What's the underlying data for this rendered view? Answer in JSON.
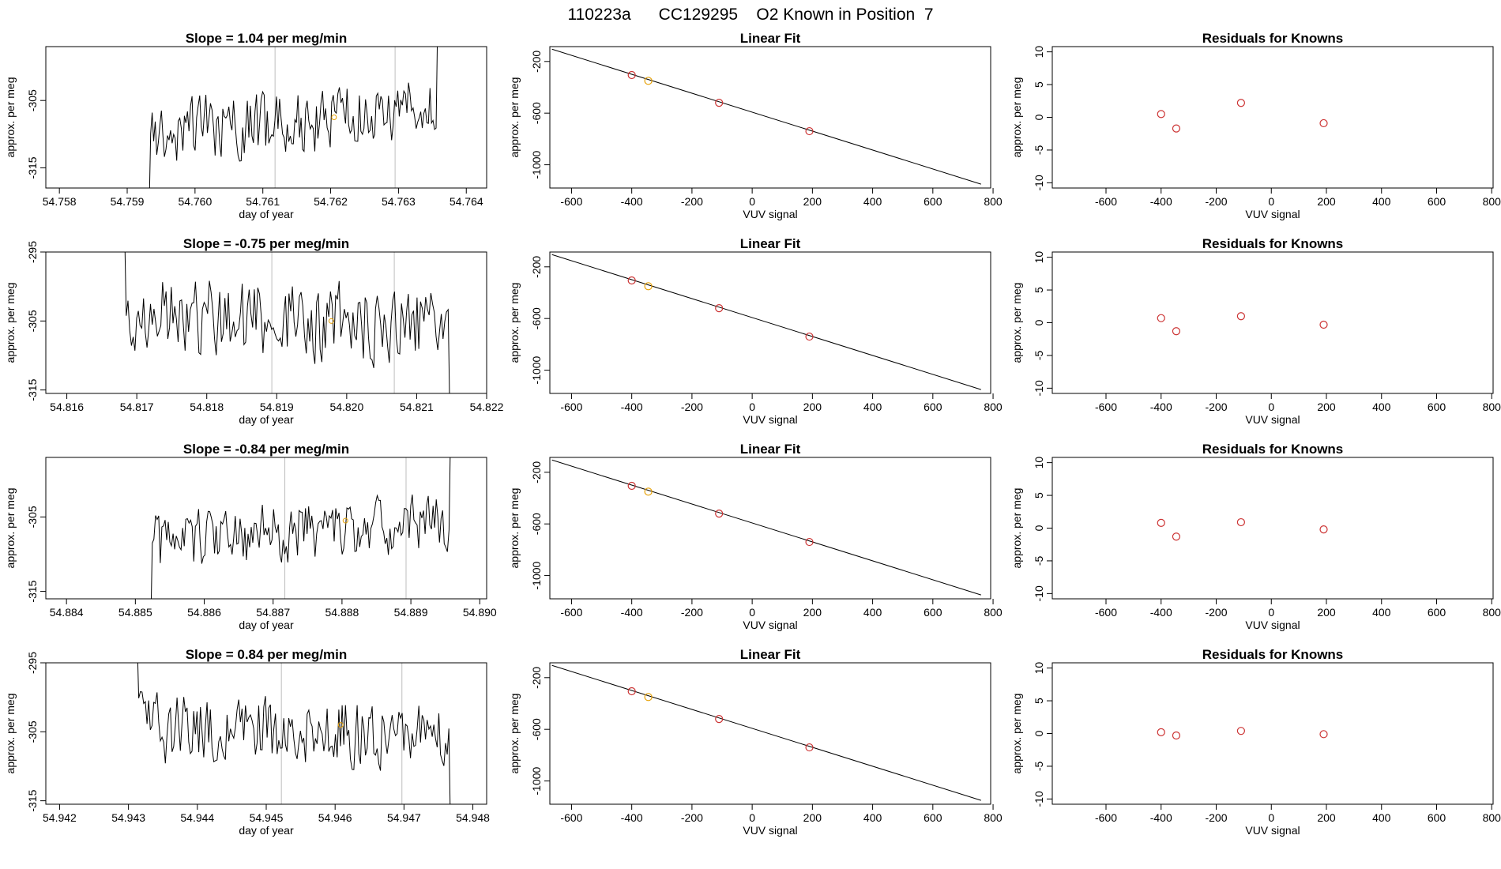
{
  "page": {
    "title": "110223a      CC129295    O2 Known in Position  7"
  },
  "colors": {
    "line": "#000000",
    "point": "#cc3333",
    "highlight": "#e69f00",
    "vline": "#bebebe",
    "axis": "#000000"
  },
  "chart_data": [
    {
      "type": "line",
      "row": 0,
      "col": 0,
      "title": "Slope =  1.04  per meg/min",
      "xlabel": "day of year",
      "ylabel": "approx. per meg",
      "xlim": [
        54.7578,
        54.7643
      ],
      "ylim": [
        -318,
        -297
      ],
      "xticks": [
        "54.758",
        "54.759",
        "54.760",
        "54.761",
        "54.762",
        "54.763",
        "54.764"
      ],
      "xtick_values": [
        54.758,
        54.759,
        54.76,
        54.761,
        54.762,
        54.763,
        54.764
      ],
      "yticks": [
        "-315",
        "-305"
      ],
      "ytick_values": [
        -315,
        -305
      ],
      "start": 54.7593,
      "end": 54.7636,
      "seed": 1,
      "base": -308,
      "trend": 3,
      "amp": 6,
      "vlines": [
        54.76118,
        54.76295
      ],
      "marker": [
        54.76205,
        -307.5
      ]
    },
    {
      "type": "scatter",
      "row": 0,
      "col": 1,
      "title": "Linear Fit",
      "xlabel": "VUV signal",
      "ylabel": "approx. per meg",
      "xlim": [
        -672,
        792
      ],
      "ylim": [
        -1180,
        -85
      ],
      "xticks": [
        "-600",
        "-400",
        "-200",
        "0",
        "200",
        "400",
        "600",
        "800"
      ],
      "xtick_values": [
        -600,
        -400,
        -200,
        0,
        200,
        400,
        600,
        800
      ],
      "yticks": [
        "-1000",
        "-600",
        "-200"
      ],
      "ytick_values": [
        -1000,
        -600,
        -200
      ],
      "line": {
        "x": [
          -665,
          760
        ],
        "y": [
          -105,
          -1150
        ]
      },
      "x": [
        -400,
        -345,
        -110,
        190
      ],
      "y": [
        -305,
        -350,
        -520,
        -740
      ],
      "highlight_index": 1
    },
    {
      "type": "scatter",
      "row": 0,
      "col": 2,
      "title": "Residuals for Knowns",
      "xlabel": "VUV signal",
      "ylabel": "approx. per meg",
      "xlim": [
        -795,
        805
      ],
      "ylim": [
        -10.8,
        10.8
      ],
      "xticks": [
        "-600",
        "-400",
        "-200",
        "0",
        "200",
        "400",
        "600",
        "800"
      ],
      "xtick_values": [
        -600,
        -400,
        -200,
        0,
        200,
        400,
        600,
        800
      ],
      "yticks": [
        "-10",
        "-5",
        "0",
        "5",
        "10"
      ],
      "ytick_values": [
        -10,
        -5,
        0,
        5,
        10
      ],
      "x": [
        -400,
        -345,
        -110,
        190
      ],
      "y": [
        0.5,
        -1.7,
        2.2,
        -0.9
      ]
    },
    {
      "type": "line",
      "row": 1,
      "col": 0,
      "title": "Slope =  -0.75  per meg/min",
      "xlabel": "day of year",
      "ylabel": "approx. per meg",
      "xlim": [
        54.8157,
        54.822
      ],
      "ylim": [
        -315.5,
        -295
      ],
      "xticks": [
        "54.816",
        "54.817",
        "54.818",
        "54.819",
        "54.820",
        "54.821",
        "54.822"
      ],
      "xtick_values": [
        54.816,
        54.817,
        54.818,
        54.819,
        54.82,
        54.821,
        54.822
      ],
      "yticks": [
        "-315",
        "-305",
        "-295"
      ],
      "ytick_values": [
        -315,
        -305,
        -295
      ],
      "start": 54.8168,
      "end": 54.8215,
      "seed": 2,
      "base": -305,
      "trend": -2,
      "amp": 7,
      "vlines": [
        54.81893,
        54.82068
      ],
      "marker": [
        54.81978,
        -305
      ]
    },
    {
      "type": "scatter",
      "row": 1,
      "col": 1,
      "title": "Linear Fit",
      "xlabel": "VUV signal",
      "ylabel": "approx. per meg",
      "xlim": [
        -672,
        792
      ],
      "ylim": [
        -1180,
        -85
      ],
      "xticks": [
        "-600",
        "-400",
        "-200",
        "0",
        "200",
        "400",
        "600",
        "800"
      ],
      "xtick_values": [
        -600,
        -400,
        -200,
        0,
        200,
        400,
        600,
        800
      ],
      "yticks": [
        "-1000",
        "-600",
        "-200"
      ],
      "ytick_values": [
        -1000,
        -600,
        -200
      ],
      "line": {
        "x": [
          -665,
          760
        ],
        "y": [
          -105,
          -1150
        ]
      },
      "x": [
        -400,
        -345,
        -110,
        190
      ],
      "y": [
        -305,
        -350,
        -520,
        -740
      ],
      "highlight_index": 1
    },
    {
      "type": "scatter",
      "row": 1,
      "col": 2,
      "title": "Residuals for Knowns",
      "xlabel": "VUV signal",
      "ylabel": "approx. per meg",
      "xlim": [
        -795,
        805
      ],
      "ylim": [
        -10.8,
        10.8
      ],
      "xticks": [
        "-600",
        "-400",
        "-200",
        "0",
        "200",
        "400",
        "600",
        "800"
      ],
      "xtick_values": [
        -600,
        -400,
        -200,
        0,
        200,
        400,
        600,
        800
      ],
      "yticks": [
        "-10",
        "-5",
        "0",
        "5",
        "10"
      ],
      "ytick_values": [
        -10,
        -5,
        0,
        5,
        10
      ],
      "x": [
        -400,
        -345,
        -110,
        190
      ],
      "y": [
        0.7,
        -1.3,
        1.0,
        -0.3
      ]
    },
    {
      "type": "line",
      "row": 2,
      "col": 0,
      "title": "Slope =  -0.84  per meg/min",
      "xlabel": "day of year",
      "ylabel": "approx. per meg",
      "xlim": [
        54.8837,
        54.8901
      ],
      "ylim": [
        -316,
        -297
      ],
      "xticks": [
        "54.884",
        "54.885",
        "54.886",
        "54.887",
        "54.888",
        "54.889",
        "54.890"
      ],
      "xtick_values": [
        54.884,
        54.885,
        54.886,
        54.887,
        54.888,
        54.889,
        54.89
      ],
      "yticks": [
        "-315",
        "-305"
      ],
      "ytick_values": [
        -315,
        -305
      ],
      "start": 54.8852,
      "end": 54.8896,
      "seed": 3,
      "base": -307,
      "trend": 3,
      "amp": 5,
      "vlines": [
        54.88717,
        54.88893
      ],
      "marker": [
        54.88805,
        -305.5
      ]
    },
    {
      "type": "scatter",
      "row": 2,
      "col": 1,
      "title": "Linear Fit",
      "xlabel": "VUV signal",
      "ylabel": "approx. per meg",
      "xlim": [
        -672,
        792
      ],
      "ylim": [
        -1180,
        -85
      ],
      "xticks": [
        "-600",
        "-400",
        "-200",
        "0",
        "200",
        "400",
        "600",
        "800"
      ],
      "xtick_values": [
        -600,
        -400,
        -200,
        0,
        200,
        400,
        600,
        800
      ],
      "yticks": [
        "-1000",
        "-600",
        "-200"
      ],
      "ytick_values": [
        -1000,
        -600,
        -200
      ],
      "line": {
        "x": [
          -665,
          760
        ],
        "y": [
          -105,
          -1150
        ]
      },
      "x": [
        -400,
        -345,
        -110,
        190
      ],
      "y": [
        -305,
        -350,
        -520,
        -740
      ],
      "highlight_index": 1
    },
    {
      "type": "scatter",
      "row": 2,
      "col": 2,
      "title": "Residuals for Knowns",
      "xlabel": "VUV signal",
      "ylabel": "approx. per meg",
      "xlim": [
        -795,
        805
      ],
      "ylim": [
        -10.8,
        10.8
      ],
      "xticks": [
        "-600",
        "-400",
        "-200",
        "0",
        "200",
        "400",
        "600",
        "800"
      ],
      "xtick_values": [
        -600,
        -400,
        -200,
        0,
        200,
        400,
        600,
        800
      ],
      "yticks": [
        "-10",
        "-5",
        "0",
        "5",
        "10"
      ],
      "ytick_values": [
        -10,
        -5,
        0,
        5,
        10
      ],
      "x": [
        -400,
        -345,
        -110,
        190
      ],
      "y": [
        0.8,
        -1.3,
        0.9,
        -0.2
      ]
    },
    {
      "type": "line",
      "row": 3,
      "col": 0,
      "title": "Slope =  0.84  per meg/min",
      "xlabel": "day of year",
      "ylabel": "approx. per meg",
      "xlim": [
        54.9418,
        54.9482
      ],
      "ylim": [
        -315.5,
        -295
      ],
      "xticks": [
        "54.942",
        "54.943",
        "54.944",
        "54.945",
        "54.946",
        "54.947",
        "54.948"
      ],
      "xtick_values": [
        54.942,
        54.943,
        54.944,
        54.945,
        54.946,
        54.947,
        54.948
      ],
      "yticks": [
        "-315",
        "-305",
        "-295"
      ],
      "ytick_values": [
        -315,
        -305,
        -295
      ],
      "start": 54.9431,
      "end": 54.9477,
      "seed": 4,
      "base": -305,
      "trend": -1,
      "amp": 6,
      "vlines": [
        54.94522,
        54.94697
      ],
      "marker": [
        54.94608,
        -304
      ]
    },
    {
      "type": "scatter",
      "row": 3,
      "col": 1,
      "title": "Linear Fit",
      "xlabel": "VUV signal",
      "ylabel": "approx. per meg",
      "xlim": [
        -672,
        792
      ],
      "ylim": [
        -1180,
        -85
      ],
      "xticks": [
        "-600",
        "-400",
        "-200",
        "0",
        "200",
        "400",
        "600",
        "800"
      ],
      "xtick_values": [
        -600,
        -400,
        -200,
        0,
        200,
        400,
        600,
        800
      ],
      "yticks": [
        "-1000",
        "-600",
        "-200"
      ],
      "ytick_values": [
        -1000,
        -600,
        -200
      ],
      "line": {
        "x": [
          -665,
          760
        ],
        "y": [
          -105,
          -1150
        ]
      },
      "x": [
        -400,
        -345,
        -110,
        190
      ],
      "y": [
        -305,
        -350,
        -520,
        -740
      ],
      "highlight_index": 1
    },
    {
      "type": "scatter",
      "row": 3,
      "col": 2,
      "title": "Residuals for Knowns",
      "xlabel": "VUV signal",
      "ylabel": "approx. per meg",
      "xlim": [
        -795,
        805
      ],
      "ylim": [
        -10.8,
        10.8
      ],
      "xticks": [
        "-600",
        "-400",
        "-200",
        "0",
        "200",
        "400",
        "600",
        "800"
      ],
      "xtick_values": [
        -600,
        -400,
        -200,
        0,
        200,
        400,
        600,
        800
      ],
      "yticks": [
        "-10",
        "-5",
        "0",
        "5",
        "10"
      ],
      "ytick_values": [
        -10,
        -5,
        0,
        5,
        10
      ],
      "x": [
        -400,
        -345,
        -110,
        190
      ],
      "y": [
        0.2,
        -0.3,
        0.4,
        -0.1
      ]
    }
  ]
}
